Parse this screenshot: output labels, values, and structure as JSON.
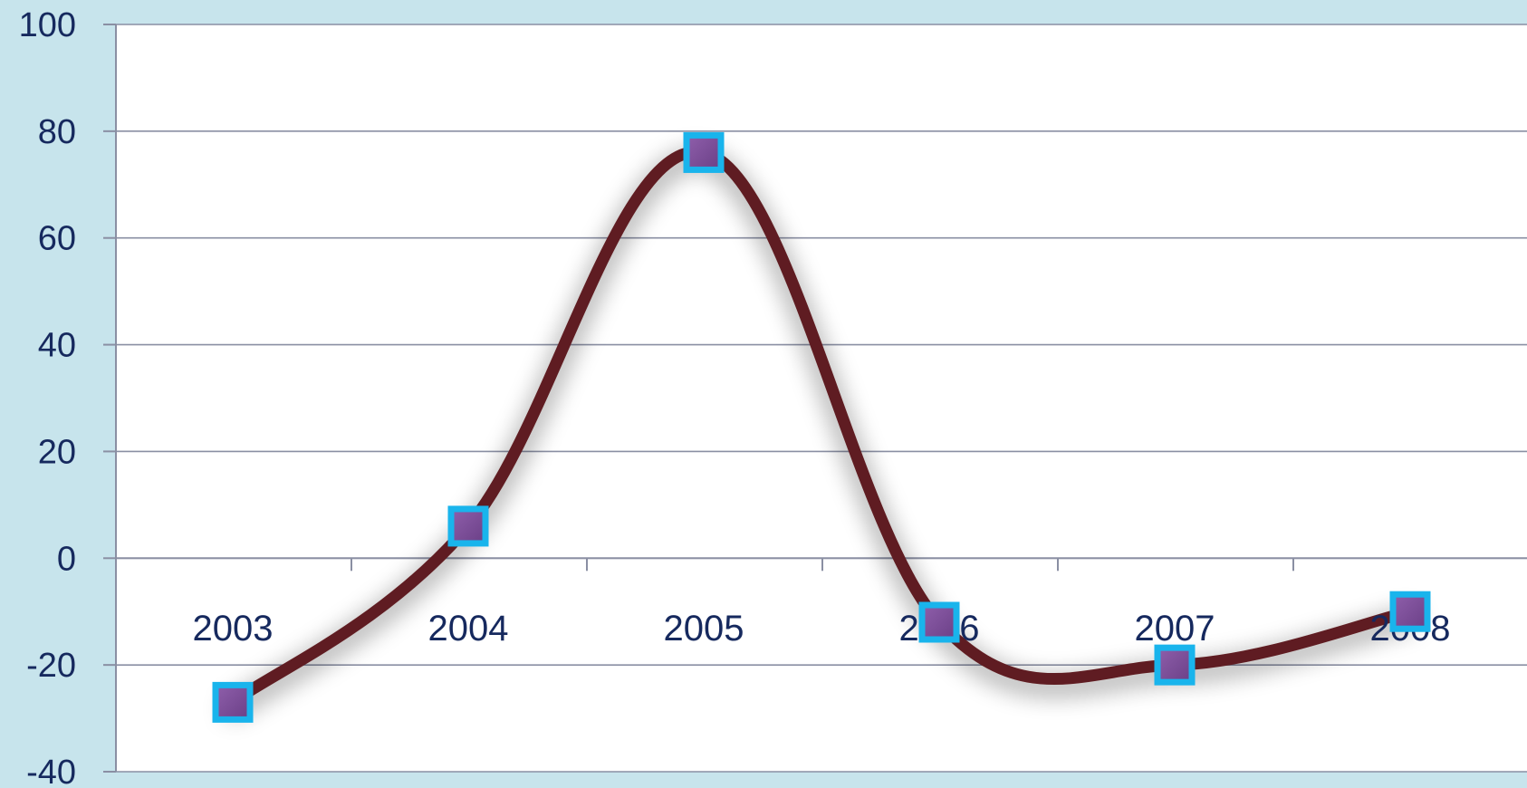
{
  "chart_data": {
    "type": "line",
    "title": "",
    "xlabel": "",
    "ylabel": "",
    "categories": [
      "2003",
      "2004",
      "2005",
      "2006",
      "2007",
      "2008"
    ],
    "series": [
      {
        "values": [
          -27,
          6,
          76,
          -12,
          -20,
          -10
        ]
      }
    ],
    "ylim": [
      -40,
      100
    ],
    "yticks": [
      "100",
      "80",
      "60",
      "40",
      "20",
      "0",
      "-20",
      "-40"
    ],
    "grid": true,
    "smooth": true,
    "legend": "none",
    "colors": {
      "background": "#c7e4ec",
      "plot_area": "#ffffff",
      "gridline": "#8a8fa3",
      "line": "#5e1f20",
      "marker_fill": "#7a4d97",
      "marker_border": "#19b4ec",
      "text": "#16295e"
    }
  }
}
